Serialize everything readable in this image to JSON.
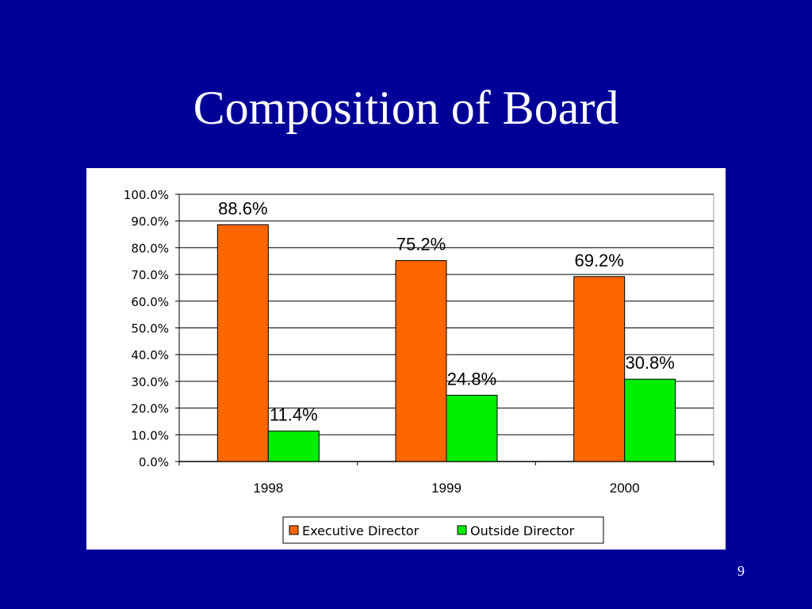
{
  "slide": {
    "title": "Composition of Board",
    "page_number": "9"
  },
  "colors": {
    "background": "#000099",
    "executive": "#ff6600",
    "outside": "#00ee00"
  },
  "chart_data": {
    "type": "bar",
    "categories": [
      "1998",
      "1999",
      "2000"
    ],
    "series": [
      {
        "name": "Executive Director",
        "values": [
          88.6,
          75.2,
          69.2
        ],
        "labels": [
          "88.6%",
          "75.2%",
          "69.2%"
        ]
      },
      {
        "name": "Outside Director",
        "values": [
          11.4,
          24.8,
          30.8
        ],
        "labels": [
          "11.4%",
          "24.8%",
          "30.8%"
        ]
      }
    ],
    "ylim": [
      0,
      100
    ],
    "yticks": [
      "0.0%",
      "10.0%",
      "20.0%",
      "30.0%",
      "40.0%",
      "50.0%",
      "60.0%",
      "70.0%",
      "80.0%",
      "90.0%",
      "100.0%"
    ],
    "grid": true,
    "legend": "bottom"
  }
}
